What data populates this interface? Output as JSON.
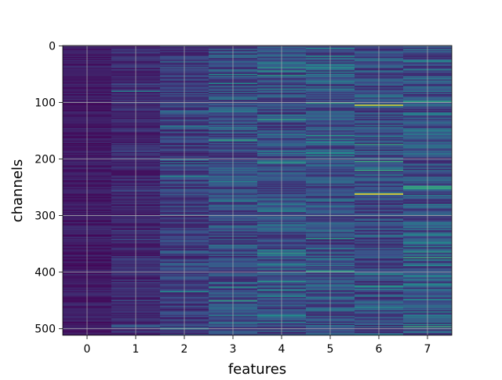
{
  "chart_data": {
    "type": "heatmap",
    "xlabel": "features",
    "ylabel": "channels",
    "x_categories": [
      "0",
      "1",
      "2",
      "3",
      "4",
      "5",
      "6",
      "7"
    ],
    "x_ticks": [
      0,
      1,
      2,
      3,
      4,
      5,
      6,
      7
    ],
    "y_ticks": [
      0,
      100,
      200,
      300,
      400,
      500
    ],
    "xlim": [
      -0.5,
      7.5
    ],
    "ylim": [
      511.5,
      -0.5
    ],
    "n_rows": 512,
    "grid": true,
    "colormap": "viridis",
    "colormap_stops": [
      "#440154",
      "#3b528b",
      "#21918c",
      "#5ec962",
      "#fde725"
    ],
    "column_mean_intensity": [
      0.08,
      0.12,
      0.19,
      0.23,
      0.23,
      0.25,
      0.22,
      0.25
    ],
    "notable_cells": [
      {
        "feature": 6,
        "channel": 105,
        "intensity": 0.95
      },
      {
        "feature": 6,
        "channel": 262,
        "intensity": 1.0
      },
      {
        "feature": 6,
        "channel": 220,
        "intensity": 0.6
      },
      {
        "feature": 5,
        "channel": 165,
        "intensity": 0.45
      },
      {
        "feature": 3,
        "channel": 240,
        "intensity": 0.45
      },
      {
        "feature": 4,
        "channel": 370,
        "intensity": 0.45
      },
      {
        "feature": 7,
        "channel": 355,
        "intensity": 0.45
      }
    ]
  }
}
